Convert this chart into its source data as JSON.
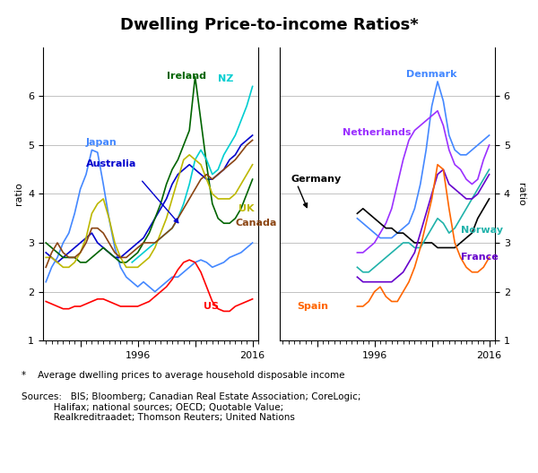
{
  "title": "Dwelling Price-to-income Ratios*",
  "footnote": "*    Average dwelling prices to average household disposable income",
  "sources": "Sources:   BIS; Bloomberg; Canadian Real Estate Association; CoreLogic;\n           Halifax; national sources; OECD; Quotable Value;\n           Realkreditraadet; Thomson Reuters; United Nations",
  "ylabel": "ratio",
  "ylim": [
    1,
    7
  ],
  "yticks": [
    1,
    2,
    3,
    4,
    5,
    6
  ],
  "years_left": [
    1980,
    1981,
    1982,
    1983,
    1984,
    1985,
    1986,
    1987,
    1988,
    1989,
    1990,
    1991,
    1992,
    1993,
    1994,
    1995,
    1996,
    1997,
    1998,
    1999,
    2000,
    2001,
    2002,
    2003,
    2004,
    2005,
    2006,
    2007,
    2008,
    2009,
    2010,
    2011,
    2012,
    2013,
    2014,
    2015,
    2016
  ],
  "years_right": [
    1980,
    1981,
    1982,
    1983,
    1984,
    1985,
    1986,
    1987,
    1988,
    1989,
    1990,
    1991,
    1992,
    1993,
    1994,
    1995,
    1996,
    1997,
    1998,
    1999,
    2000,
    2001,
    2002,
    2003,
    2004,
    2005,
    2006,
    2007,
    2008,
    2009,
    2010,
    2011,
    2012,
    2013,
    2014,
    2015,
    2016
  ],
  "left_panel": {
    "Japan": {
      "color": "#4488FF",
      "data": [
        2.2,
        2.5,
        2.7,
        3.0,
        3.2,
        3.6,
        4.1,
        4.4,
        4.9,
        4.85,
        4.2,
        3.5,
        2.9,
        2.5,
        2.3,
        2.2,
        2.1,
        2.2,
        2.1,
        2.0,
        2.1,
        2.2,
        2.3,
        2.3,
        2.4,
        2.5,
        2.6,
        2.65,
        2.6,
        2.5,
        2.55,
        2.6,
        2.7,
        2.75,
        2.8,
        2.9,
        3.0
      ]
    },
    "Australia": {
      "color": "#0000CD",
      "data": [
        2.8,
        2.7,
        2.6,
        2.7,
        2.8,
        2.9,
        3.0,
        3.1,
        3.2,
        3.0,
        2.9,
        2.8,
        2.7,
        2.7,
        2.8,
        2.9,
        3.0,
        3.1,
        3.3,
        3.5,
        3.7,
        3.9,
        4.2,
        4.4,
        4.5,
        4.6,
        4.5,
        4.4,
        4.3,
        4.3,
        4.4,
        4.5,
        4.7,
        4.8,
        5.0,
        5.1,
        5.2
      ]
    },
    "Ireland": {
      "color": "#006400",
      "data": [
        3.0,
        2.9,
        2.8,
        2.7,
        2.7,
        2.7,
        2.6,
        2.6,
        2.7,
        2.8,
        2.9,
        2.8,
        2.7,
        2.6,
        2.6,
        2.7,
        2.8,
        3.0,
        3.2,
        3.5,
        3.8,
        4.2,
        4.5,
        4.7,
        5.0,
        5.3,
        6.4,
        5.5,
        4.6,
        3.8,
        3.5,
        3.4,
        3.4,
        3.5,
        3.7,
        4.0,
        4.3
      ]
    },
    "NZ": {
      "color": "#00CED1",
      "data": [
        null,
        null,
        null,
        null,
        null,
        null,
        null,
        null,
        null,
        null,
        null,
        null,
        null,
        null,
        null,
        2.6,
        2.7,
        2.8,
        2.9,
        3.0,
        3.1,
        3.2,
        3.3,
        3.5,
        3.8,
        4.2,
        4.7,
        4.9,
        4.7,
        4.4,
        4.5,
        4.8,
        5.0,
        5.2,
        5.5,
        5.8,
        6.2
      ]
    },
    "UK": {
      "color": "#BDB800",
      "data": [
        2.7,
        2.7,
        2.6,
        2.5,
        2.5,
        2.6,
        2.8,
        3.1,
        3.6,
        3.8,
        3.9,
        3.5,
        3.0,
        2.7,
        2.5,
        2.5,
        2.5,
        2.6,
        2.7,
        2.9,
        3.2,
        3.5,
        3.9,
        4.3,
        4.7,
        4.8,
        4.7,
        4.6,
        4.3,
        4.0,
        3.9,
        3.9,
        3.9,
        4.0,
        4.2,
        4.4,
        4.6
      ]
    },
    "Canada": {
      "color": "#8B4513",
      "data": [
        2.5,
        2.8,
        3.0,
        2.8,
        2.7,
        2.7,
        2.8,
        3.0,
        3.3,
        3.3,
        3.2,
        3.0,
        2.8,
        2.7,
        2.7,
        2.8,
        2.9,
        3.0,
        3.0,
        3.0,
        3.1,
        3.2,
        3.3,
        3.5,
        3.7,
        3.9,
        4.1,
        4.3,
        4.4,
        4.3,
        4.4,
        4.5,
        4.6,
        4.7,
        4.85,
        5.0,
        5.1
      ]
    },
    "US": {
      "color": "#FF0000",
      "data": [
        1.8,
        1.75,
        1.7,
        1.65,
        1.65,
        1.7,
        1.7,
        1.75,
        1.8,
        1.85,
        1.85,
        1.8,
        1.75,
        1.7,
        1.7,
        1.7,
        1.7,
        1.75,
        1.8,
        1.9,
        2.0,
        2.1,
        2.25,
        2.45,
        2.6,
        2.65,
        2.6,
        2.4,
        2.1,
        1.8,
        1.65,
        1.6,
        1.6,
        1.7,
        1.75,
        1.8,
        1.85
      ]
    }
  },
  "right_panel": {
    "Denmark": {
      "color": "#4488FF",
      "data": [
        null,
        null,
        null,
        null,
        null,
        null,
        null,
        null,
        null,
        null,
        null,
        null,
        null,
        3.5,
        3.4,
        3.3,
        3.2,
        3.1,
        3.1,
        3.1,
        3.2,
        3.3,
        3.4,
        3.7,
        4.2,
        4.9,
        5.8,
        6.3,
        5.9,
        5.2,
        4.9,
        4.8,
        4.8,
        4.9,
        5.0,
        5.1,
        5.2
      ]
    },
    "Netherlands": {
      "color": "#9B30FF",
      "data": [
        null,
        null,
        null,
        null,
        null,
        null,
        null,
        null,
        null,
        null,
        null,
        null,
        null,
        2.8,
        2.8,
        2.9,
        3.0,
        3.2,
        3.4,
        3.7,
        4.2,
        4.7,
        5.1,
        5.3,
        5.4,
        5.5,
        5.6,
        5.7,
        5.4,
        4.9,
        4.6,
        4.5,
        4.3,
        4.2,
        4.3,
        4.7,
        5.0
      ]
    },
    "Germany": {
      "color": "#000000",
      "data": [
        null,
        null,
        null,
        null,
        null,
        null,
        null,
        null,
        null,
        null,
        null,
        null,
        null,
        3.6,
        3.7,
        3.6,
        3.5,
        3.4,
        3.3,
        3.3,
        3.2,
        3.2,
        3.1,
        3.0,
        3.0,
        3.0,
        3.0,
        2.9,
        2.9,
        2.9,
        2.9,
        3.0,
        3.1,
        3.2,
        3.5,
        3.7,
        3.9
      ]
    },
    "Norway": {
      "color": "#20B2AA",
      "data": [
        null,
        null,
        null,
        null,
        null,
        null,
        null,
        null,
        null,
        null,
        null,
        null,
        null,
        2.5,
        2.4,
        2.4,
        2.5,
        2.6,
        2.7,
        2.8,
        2.9,
        3.0,
        3.0,
        2.9,
        2.9,
        3.1,
        3.3,
        3.5,
        3.4,
        3.2,
        3.3,
        3.5,
        3.7,
        3.9,
        4.1,
        4.3,
        4.5
      ]
    },
    "France": {
      "color": "#6600CC",
      "data": [
        null,
        null,
        null,
        null,
        null,
        null,
        null,
        null,
        null,
        null,
        null,
        null,
        null,
        2.3,
        2.2,
        2.2,
        2.2,
        2.2,
        2.2,
        2.2,
        2.3,
        2.4,
        2.6,
        2.8,
        3.2,
        3.6,
        4.0,
        4.4,
        4.5,
        4.2,
        4.1,
        4.0,
        3.9,
        3.9,
        4.0,
        4.2,
        4.4
      ]
    },
    "Spain": {
      "color": "#FF6600",
      "data": [
        null,
        null,
        null,
        null,
        null,
        null,
        null,
        null,
        null,
        null,
        null,
        null,
        null,
        1.7,
        1.7,
        1.8,
        2.0,
        2.1,
        1.9,
        1.8,
        1.8,
        2.0,
        2.2,
        2.5,
        2.9,
        3.4,
        3.9,
        4.6,
        4.5,
        3.7,
        3.0,
        2.7,
        2.5,
        2.4,
        2.4,
        2.5,
        2.7
      ]
    }
  },
  "left_xticks": [
    1986,
    1996,
    2006,
    2016
  ],
  "right_xticks": [
    1986,
    1996,
    2006,
    2016
  ],
  "left_xtick_labels": [
    "",
    "1996",
    "",
    "2016"
  ],
  "right_xtick_labels": [
    "",
    "1996",
    "",
    "2016"
  ]
}
